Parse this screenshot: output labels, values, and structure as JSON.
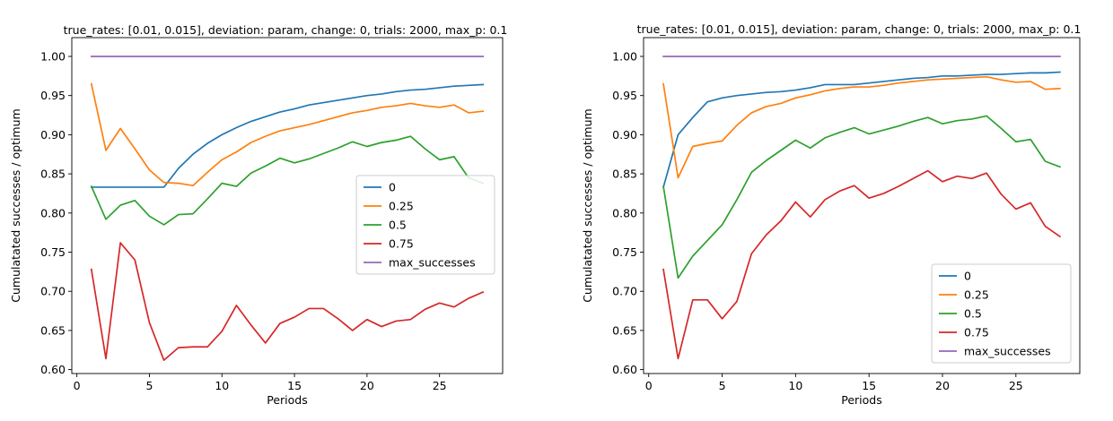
{
  "chart_data": [
    {
      "type": "line",
      "title": "true_rates: [0.01, 0.015], deviation: param, change: 0, trials: 2000, max_p: 0.1",
      "xlabel": "Periods",
      "ylabel": "Cumulatated successes / optimum",
      "xlim": [
        -0.35,
        29.35
      ],
      "ylim": [
        0.595,
        1.024
      ],
      "xticks": [
        0,
        5,
        10,
        15,
        20,
        25
      ],
      "yticks": [
        0.6,
        0.65,
        0.7,
        0.75,
        0.8,
        0.85,
        0.9,
        0.95,
        1.0
      ],
      "legend_position": "center-right",
      "grid": false,
      "x": [
        1,
        2,
        3,
        4,
        5,
        6,
        7,
        8,
        9,
        10,
        11,
        12,
        13,
        14,
        15,
        16,
        17,
        18,
        19,
        20,
        21,
        22,
        23,
        24,
        25,
        26,
        27,
        28
      ],
      "series": [
        {
          "name": "0",
          "color": "#1f77b4",
          "values": [
            0.833,
            0.833,
            0.833,
            0.833,
            0.833,
            0.833,
            0.857,
            0.875,
            0.889,
            0.9,
            0.909,
            0.917,
            0.923,
            0.929,
            0.933,
            0.938,
            0.941,
            0.944,
            0.947,
            0.95,
            0.952,
            0.955,
            0.957,
            0.958,
            0.96,
            0.962,
            0.963,
            0.964
          ]
        },
        {
          "name": "0.25",
          "color": "#ff7f0e",
          "values": [
            0.965,
            0.88,
            0.908,
            0.882,
            0.855,
            0.839,
            0.838,
            0.835,
            0.852,
            0.868,
            0.878,
            0.89,
            0.898,
            0.905,
            0.909,
            0.913,
            0.918,
            0.923,
            0.928,
            0.931,
            0.935,
            0.937,
            0.94,
            0.937,
            0.935,
            0.938,
            0.928,
            0.93
          ]
        },
        {
          "name": "0.5",
          "color": "#2ca02c",
          "values": [
            0.834,
            0.792,
            0.81,
            0.816,
            0.796,
            0.785,
            0.798,
            0.799,
            0.818,
            0.838,
            0.834,
            0.851,
            0.86,
            0.87,
            0.864,
            0.869,
            0.876,
            0.883,
            0.891,
            0.885,
            0.89,
            0.893,
            0.898,
            0.882,
            0.868,
            0.872,
            0.845,
            0.838
          ]
        },
        {
          "name": "0.75",
          "color": "#d62728",
          "values": [
            0.728,
            0.614,
            0.762,
            0.74,
            0.66,
            0.612,
            0.628,
            0.629,
            0.629,
            0.649,
            0.682,
            0.657,
            0.634,
            0.659,
            0.667,
            0.678,
            0.678,
            0.665,
            0.65,
            0.664,
            0.655,
            0.662,
            0.664,
            0.677,
            0.685,
            0.68,
            0.691,
            0.699
          ]
        },
        {
          "name": "max_successes",
          "color": "#9467bd",
          "values": [
            1,
            1,
            1,
            1,
            1,
            1,
            1,
            1,
            1,
            1,
            1,
            1,
            1,
            1,
            1,
            1,
            1,
            1,
            1,
            1,
            1,
            1,
            1,
            1,
            1,
            1,
            1,
            1
          ]
        }
      ]
    },
    {
      "type": "line",
      "title": "true_rates: [0.01, 0.015], deviation: param, change: 0, trials: 2000, max_p: 0.1",
      "xlabel": "Periods",
      "ylabel": "Cumulatated successes / optimum",
      "xlim": [
        -0.35,
        29.35
      ],
      "ylim": [
        0.595,
        1.024
      ],
      "xticks": [
        0,
        5,
        10,
        15,
        20,
        25
      ],
      "yticks": [
        0.6,
        0.65,
        0.7,
        0.75,
        0.8,
        0.85,
        0.9,
        0.95,
        1.0
      ],
      "legend_position": "bottom-right",
      "grid": false,
      "x": [
        1,
        2,
        3,
        4,
        5,
        6,
        7,
        8,
        9,
        10,
        11,
        12,
        13,
        14,
        15,
        16,
        17,
        18,
        19,
        20,
        21,
        22,
        23,
        24,
        25,
        26,
        27,
        28
      ],
      "series": [
        {
          "name": "0",
          "color": "#1f77b4",
          "values": [
            0.833,
            0.9,
            0.922,
            0.942,
            0.947,
            0.95,
            0.952,
            0.954,
            0.955,
            0.957,
            0.96,
            0.964,
            0.964,
            0.964,
            0.966,
            0.968,
            0.97,
            0.972,
            0.973,
            0.975,
            0.975,
            0.976,
            0.977,
            0.977,
            0.978,
            0.979,
            0.979,
            0.98
          ]
        },
        {
          "name": "0.25",
          "color": "#ff7f0e",
          "values": [
            0.965,
            0.845,
            0.885,
            0.889,
            0.892,
            0.912,
            0.928,
            0.936,
            0.94,
            0.947,
            0.951,
            0.956,
            0.959,
            0.961,
            0.961,
            0.963,
            0.966,
            0.968,
            0.97,
            0.971,
            0.972,
            0.973,
            0.974,
            0.97,
            0.967,
            0.968,
            0.958,
            0.959
          ]
        },
        {
          "name": "0.5",
          "color": "#2ca02c",
          "values": [
            0.834,
            0.717,
            0.745,
            0.765,
            0.785,
            0.817,
            0.852,
            0.867,
            0.88,
            0.893,
            0.883,
            0.896,
            0.903,
            0.909,
            0.901,
            0.906,
            0.911,
            0.917,
            0.922,
            0.914,
            0.918,
            0.92,
            0.924,
            0.908,
            0.891,
            0.894,
            0.866,
            0.859
          ]
        },
        {
          "name": "0.75",
          "color": "#d62728",
          "values": [
            0.728,
            0.614,
            0.689,
            0.689,
            0.665,
            0.687,
            0.748,
            0.772,
            0.79,
            0.814,
            0.795,
            0.817,
            0.828,
            0.835,
            0.819,
            0.825,
            0.834,
            0.844,
            0.854,
            0.84,
            0.847,
            0.844,
            0.851,
            0.824,
            0.805,
            0.813,
            0.783,
            0.77
          ]
        },
        {
          "name": "max_successes",
          "color": "#9467bd",
          "values": [
            1,
            1,
            1,
            1,
            1,
            1,
            1,
            1,
            1,
            1,
            1,
            1,
            1,
            1,
            1,
            1,
            1,
            1,
            1,
            1,
            1,
            1,
            1,
            1,
            1,
            1,
            1,
            1
          ]
        }
      ]
    }
  ]
}
